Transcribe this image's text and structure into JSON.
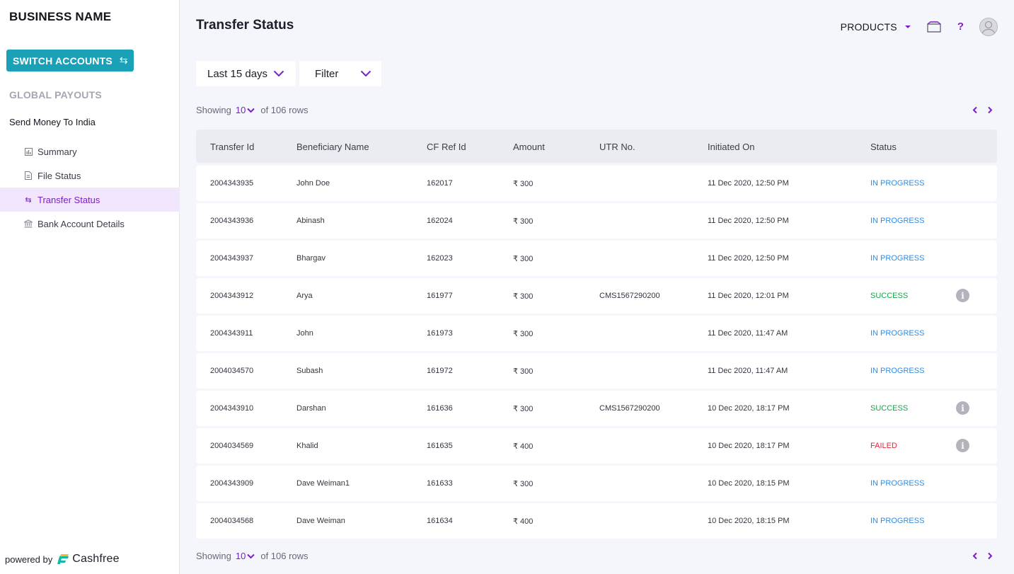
{
  "sidebar": {
    "business_name": "BUSINESS NAME",
    "switch_label": "SWITCH ACCOUNTS",
    "switch_icon": "swap-icon",
    "section_label": "GLOBAL PAYOUTS",
    "group_title": "Send Money To India",
    "items": [
      {
        "label": "Summary",
        "icon": "chart-icon",
        "active": false
      },
      {
        "label": "File Status",
        "icon": "file-icon",
        "active": false
      },
      {
        "label": "Transfer Status",
        "icon": "swap-icon",
        "active": true
      },
      {
        "label": "Bank Account Details",
        "icon": "bank-icon",
        "active": false
      }
    ],
    "powered_by": "powered by",
    "brand": "Cashfree"
  },
  "header": {
    "title": "Transfer Status",
    "products_label": "PRODUCTS"
  },
  "filters": {
    "date_range": "Last 15 days",
    "filter_label": "Filter"
  },
  "pagination": {
    "showing_label": "Showing",
    "page_size": "10",
    "rows_text": "of 106 rows"
  },
  "table": {
    "columns": [
      "Transfer Id",
      "Beneficiary Name",
      "CF Ref Id",
      "Amount",
      "UTR No.",
      "Initiated On",
      "Status"
    ],
    "rows": [
      {
        "transfer_id": "2004343935",
        "beneficiary": "John Doe",
        "cf_ref": "162017",
        "amount": "₹ 300",
        "utr": "",
        "initiated": "11 Dec 2020, 12:50 PM",
        "status": "IN PROGRESS",
        "info": false
      },
      {
        "transfer_id": "2004343936",
        "beneficiary": "Abinash",
        "cf_ref": "162024",
        "amount": "₹ 300",
        "utr": "",
        "initiated": "11 Dec 2020, 12:50 PM",
        "status": "IN PROGRESS",
        "info": false
      },
      {
        "transfer_id": "2004343937",
        "beneficiary": "Bhargav",
        "cf_ref": "162023",
        "amount": "₹ 300",
        "utr": "",
        "initiated": "11 Dec 2020, 12:50 PM",
        "status": "IN PROGRESS",
        "info": false
      },
      {
        "transfer_id": "2004343912",
        "beneficiary": "Arya",
        "cf_ref": "161977",
        "amount": "₹ 300",
        "utr": "CMS1567290200",
        "initiated": "11 Dec 2020, 12:01 PM",
        "status": "SUCCESS",
        "info": true
      },
      {
        "transfer_id": "2004343911",
        "beneficiary": "John",
        "cf_ref": "161973",
        "amount": "₹ 300",
        "utr": "",
        "initiated": "11 Dec 2020, 11:47 AM",
        "status": "IN PROGRESS",
        "info": false
      },
      {
        "transfer_id": "2004034570",
        "beneficiary": "Subash",
        "cf_ref": "161972",
        "amount": "₹ 300",
        "utr": "",
        "initiated": "11 Dec 2020, 11:47 AM",
        "status": "IN PROGRESS",
        "info": false
      },
      {
        "transfer_id": "2004343910",
        "beneficiary": "Darshan",
        "cf_ref": "161636",
        "amount": "₹ 300",
        "utr": "CMS1567290200",
        "initiated": "10 Dec 2020, 18:17 PM",
        "status": "SUCCESS",
        "info": true
      },
      {
        "transfer_id": "2004034569",
        "beneficiary": "Khalid",
        "cf_ref": "161635",
        "amount": "₹ 400",
        "utr": "",
        "initiated": "10 Dec 2020, 18:17 PM",
        "status": "FAILED",
        "info": true
      },
      {
        "transfer_id": "2004343909",
        "beneficiary": "Dave Weiman1",
        "cf_ref": "161633",
        "amount": "₹ 300",
        "utr": "",
        "initiated": "10 Dec 2020, 18:15 PM",
        "status": "IN PROGRESS",
        "info": false
      },
      {
        "transfer_id": "2004034568",
        "beneficiary": "Dave Weiman",
        "cf_ref": "161634",
        "amount": "₹ 400",
        "utr": "",
        "initiated": "10 Dec 2020, 18:15 PM",
        "status": "IN PROGRESS",
        "info": false
      }
    ]
  },
  "colors": {
    "accent": "#7a1fc7",
    "switch_button": "#1ba1b7",
    "in_progress": "#2b8ee8",
    "success": "#19a34a",
    "failed": "#e5263c"
  }
}
